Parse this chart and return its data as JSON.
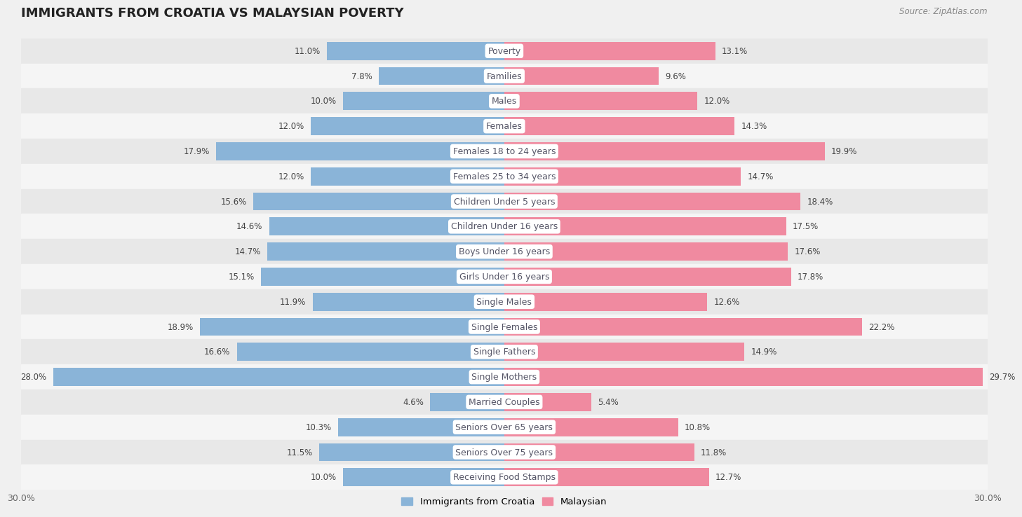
{
  "title": "IMMIGRANTS FROM CROATIA VS MALAYSIAN POVERTY",
  "source": "Source: ZipAtlas.com",
  "categories": [
    "Poverty",
    "Families",
    "Males",
    "Females",
    "Females 18 to 24 years",
    "Females 25 to 34 years",
    "Children Under 5 years",
    "Children Under 16 years",
    "Boys Under 16 years",
    "Girls Under 16 years",
    "Single Males",
    "Single Females",
    "Single Fathers",
    "Single Mothers",
    "Married Couples",
    "Seniors Over 65 years",
    "Seniors Over 75 years",
    "Receiving Food Stamps"
  ],
  "croatia_values": [
    11.0,
    7.8,
    10.0,
    12.0,
    17.9,
    12.0,
    15.6,
    14.6,
    14.7,
    15.1,
    11.9,
    18.9,
    16.6,
    28.0,
    4.6,
    10.3,
    11.5,
    10.0
  ],
  "malaysian_values": [
    13.1,
    9.6,
    12.0,
    14.3,
    19.9,
    14.7,
    18.4,
    17.5,
    17.6,
    17.8,
    12.6,
    22.2,
    14.9,
    29.7,
    5.4,
    10.8,
    11.8,
    12.7
  ],
  "croatia_color": "#8ab4d8",
  "malaysian_color": "#f08aA0",
  "row_colors": [
    "#e8e8e8",
    "#f5f5f5"
  ],
  "background_color": "#f0f0f0",
  "axis_limit": 30.0,
  "legend_labels": [
    "Immigrants from Croatia",
    "Malaysian"
  ],
  "bar_height": 0.72,
  "label_fontsize": 9.0,
  "value_fontsize": 8.5,
  "title_fontsize": 13,
  "pill_color": "#ffffff",
  "pill_text_color": "#555566"
}
